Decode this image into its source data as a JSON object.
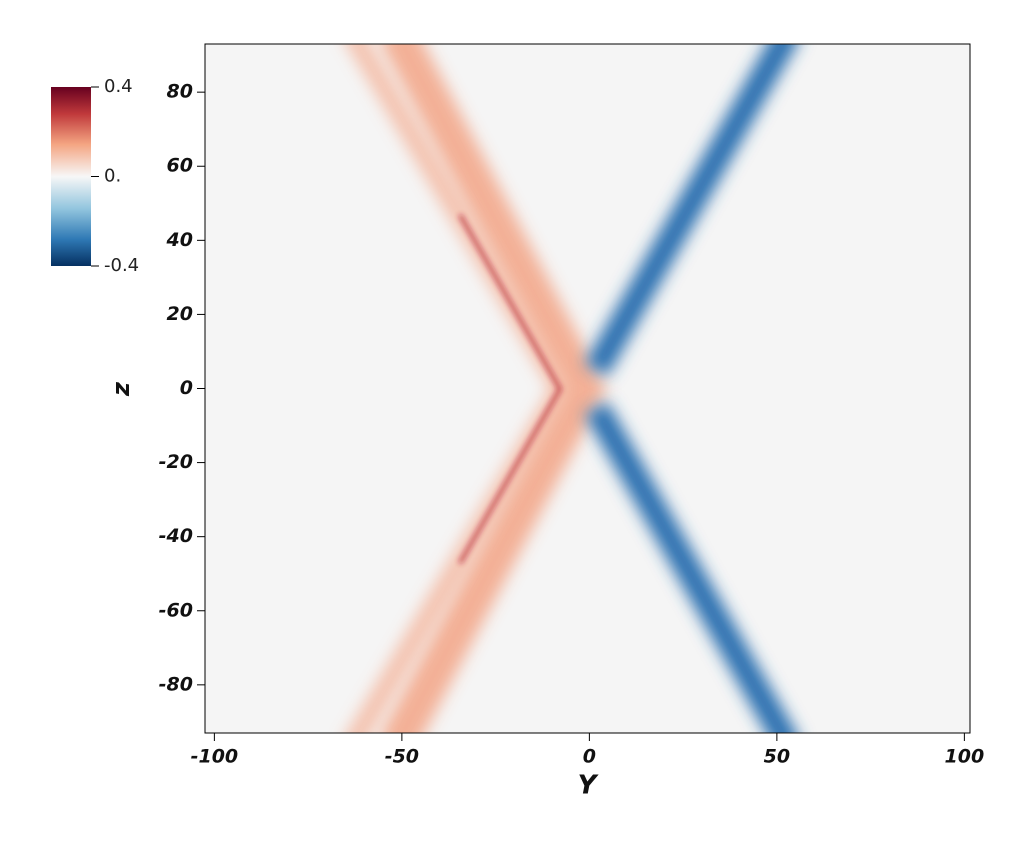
{
  "chart_data": {
    "type": "field",
    "x_label": "Y",
    "y_label": "z",
    "xlim": [
      -102.5,
      101.5
    ],
    "xticks": [
      -100,
      -50,
      0,
      50,
      100
    ],
    "ylim": [
      -93,
      93
    ],
    "yticks": [
      -80,
      -60,
      -40,
      -20,
      0,
      20,
      40,
      60,
      80
    ],
    "colorbar": {
      "clim": [
        -0.4,
        0.4
      ],
      "ticks": [
        0.4,
        {
          "value": 0,
          "label": "0."
        },
        -0.4
      ]
    }
  }
}
